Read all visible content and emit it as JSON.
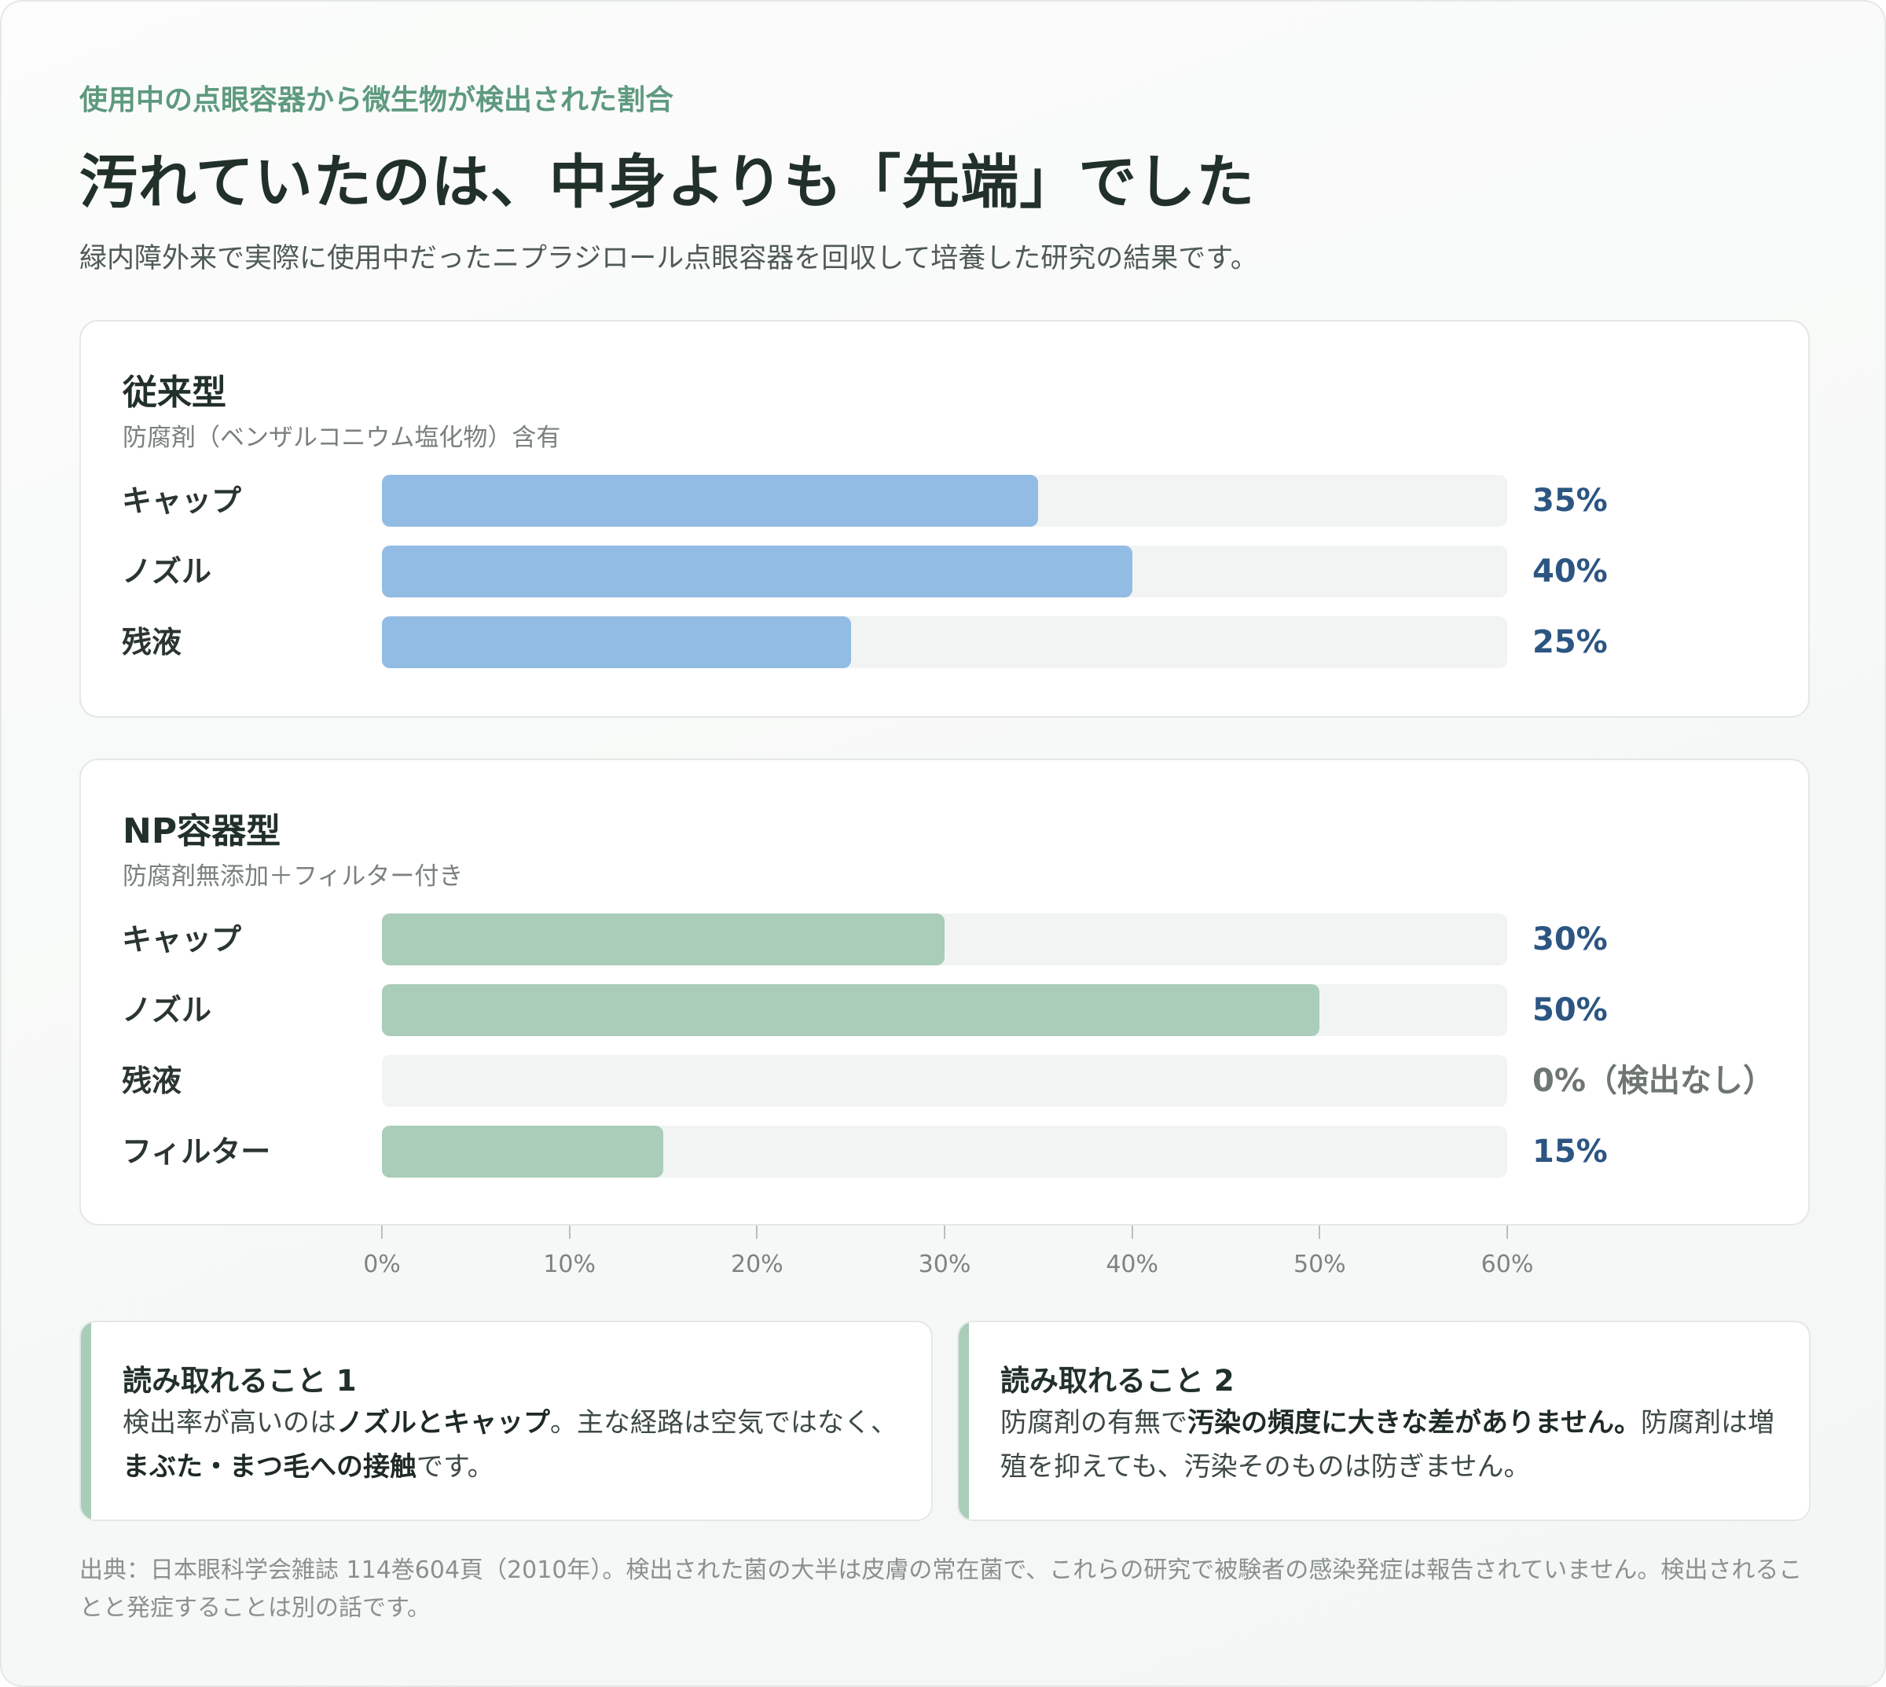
{
  "header": {
    "eyebrow": "使用中の点眼容器から微生物が検出された割合",
    "title": "汚れていたのは、中身よりも「先端」でした",
    "lead": "緑内障外来で実際に使用中だったニプラジロール点眼容器を回収して培養した研究の結果です。"
  },
  "chart_data": {
    "type": "bar",
    "orientation": "horizontal",
    "xlim": [
      0,
      60
    ],
    "x_ticks": [
      "0%",
      "10%",
      "20%",
      "30%",
      "40%",
      "50%",
      "60%"
    ],
    "panels": [
      {
        "title": "従来型",
        "subtitle": "防腐剤（ベンザルコニウム塩化物）含有",
        "color": "#92bce3",
        "categories": [
          "キャップ",
          "ノズル",
          "残液"
        ],
        "values": [
          35,
          40,
          25
        ],
        "value_labels": [
          "35%",
          "40%",
          "25%"
        ]
      },
      {
        "title": "NP容器型",
        "subtitle": "防腐剤無添加＋フィルター付き",
        "color": "#a9cdb8",
        "categories": [
          "キャップ",
          "ノズル",
          "残液",
          "フィルター"
        ],
        "values": [
          30,
          50,
          0,
          15
        ],
        "value_labels": [
          "30%",
          "50%",
          "0%（検出なし）",
          "15%"
        ]
      }
    ]
  },
  "insights": [
    {
      "title": "読み取れること 1",
      "parts": [
        {
          "t": "検出率が高いのは",
          "b": false
        },
        {
          "t": "ノズルとキャップ",
          "b": true
        },
        {
          "t": "。主な経路は空気ではなく、",
          "b": false
        },
        {
          "t": "まぶた・まつ毛への接触",
          "b": true
        },
        {
          "t": "です。",
          "b": false
        }
      ]
    },
    {
      "title": "読み取れること 2",
      "parts": [
        {
          "t": "防腐剤の有無で",
          "b": false
        },
        {
          "t": "汚染の頻度に大きな差がありません。",
          "b": true
        },
        {
          "t": "防腐剤は増殖を抑えても、汚染そのものは防ぎません。",
          "b": false
        }
      ]
    }
  ],
  "source": "出典：日本眼科学会雑誌 114巻604頁（2010年）。検出された菌の大半は皮膚の常在菌で、これらの研究で被験者の感染発症は報告されていません。検出されることと発症することは別の話です。"
}
